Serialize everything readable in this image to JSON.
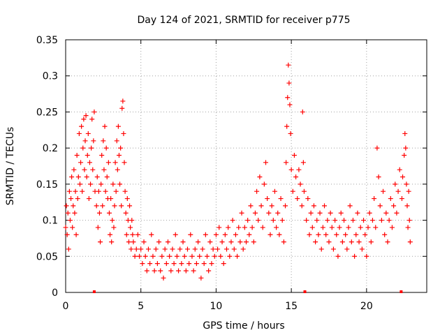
{
  "chart_data": {
    "type": "scatter",
    "title": "Day 124 of 2021, SRMTID for receiver p775",
    "xlabel": "GPS time / hours",
    "ylabel": "SRMTID / TECUs",
    "xlim": [
      0,
      24
    ],
    "ylim": [
      0,
      0.35
    ],
    "x_ticks": [
      0,
      5,
      10,
      15,
      20
    ],
    "x_tick_labels": [
      "0",
      "5",
      "10",
      "15",
      "20"
    ],
    "y_ticks": [
      0,
      0.05,
      0.1,
      0.15,
      0.2,
      0.25,
      0.3,
      0.35
    ],
    "y_tick_labels": [
      "0",
      "0.05",
      "0.1",
      "0.15",
      "0.2",
      "0.25",
      "0.3",
      "0.35"
    ],
    "grid": true,
    "marker": "plus",
    "series_color": "#ff0000",
    "gap_markers_x": [
      1.9,
      15.9,
      22.3
    ],
    "series": [
      {
        "name": "SRMTID",
        "points": [
          [
            0.0,
            0.09
          ],
          [
            0.05,
            0.12
          ],
          [
            0.1,
            0.08
          ],
          [
            0.15,
            0.11
          ],
          [
            0.2,
            0.06
          ],
          [
            0.25,
            0.14
          ],
          [
            0.3,
            0.1
          ],
          [
            0.35,
            0.13
          ],
          [
            0.4,
            0.16
          ],
          [
            0.45,
            0.09
          ],
          [
            0.5,
            0.12
          ],
          [
            0.55,
            0.17
          ],
          [
            0.6,
            0.11
          ],
          [
            0.65,
            0.14
          ],
          [
            0.7,
            0.08
          ],
          [
            0.75,
            0.19
          ],
          [
            0.8,
            0.13
          ],
          [
            0.85,
            0.16
          ],
          [
            0.9,
            0.22
          ],
          [
            0.95,
            0.15
          ],
          [
            1.0,
            0.18
          ],
          [
            1.05,
            0.23
          ],
          [
            1.1,
            0.14
          ],
          [
            1.15,
            0.2
          ],
          [
            1.2,
            0.24
          ],
          [
            1.25,
            0.17
          ],
          [
            1.3,
            0.21
          ],
          [
            1.35,
            0.245
          ],
          [
            1.4,
            0.16
          ],
          [
            1.45,
            0.19
          ],
          [
            1.5,
            0.22
          ],
          [
            1.55,
            0.13
          ],
          [
            1.6,
            0.18
          ],
          [
            1.65,
            0.15
          ],
          [
            1.7,
            0.2
          ],
          [
            1.75,
            0.24
          ],
          [
            1.8,
            0.17
          ],
          [
            1.85,
            0.21
          ],
          [
            1.9,
            0.25
          ],
          [
            1.95,
            0.14
          ],
          [
            2.05,
            0.12
          ],
          [
            2.1,
            0.16
          ],
          [
            2.15,
            0.09
          ],
          [
            2.2,
            0.14
          ],
          [
            2.25,
            0.11
          ],
          [
            2.3,
            0.07
          ],
          [
            2.35,
            0.15
          ],
          [
            2.4,
            0.19
          ],
          [
            2.45,
            0.12
          ],
          [
            2.5,
            0.21
          ],
          [
            2.55,
            0.17
          ],
          [
            2.6,
            0.23
          ],
          [
            2.65,
            0.14
          ],
          [
            2.7,
            0.2
          ],
          [
            2.75,
            0.16
          ],
          [
            2.8,
            0.13
          ],
          [
            2.85,
            0.18
          ],
          [
            2.9,
            0.11
          ],
          [
            2.95,
            0.08
          ],
          [
            3.0,
            0.13
          ],
          [
            3.05,
            0.07
          ],
          [
            3.1,
            0.1
          ],
          [
            3.15,
            0.15
          ],
          [
            3.2,
            0.09
          ],
          [
            3.25,
            0.12
          ],
          [
            3.3,
            0.18
          ],
          [
            3.35,
            0.14
          ],
          [
            3.4,
            0.21
          ],
          [
            3.45,
            0.17
          ],
          [
            3.5,
            0.23
          ],
          [
            3.55,
            0.19
          ],
          [
            3.6,
            0.15
          ],
          [
            3.65,
            0.2
          ],
          [
            3.7,
            0.12
          ],
          [
            3.75,
            0.255
          ],
          [
            3.8,
            0.265
          ],
          [
            3.85,
            0.22
          ],
          [
            3.9,
            0.18
          ],
          [
            3.95,
            0.14
          ],
          [
            4.0,
            0.11
          ],
          [
            4.05,
            0.08
          ],
          [
            4.1,
            0.13
          ],
          [
            4.15,
            0.1
          ],
          [
            4.2,
            0.07
          ],
          [
            4.25,
            0.12
          ],
          [
            4.3,
            0.09
          ],
          [
            4.35,
            0.06
          ],
          [
            4.4,
            0.1
          ],
          [
            4.45,
            0.08
          ],
          [
            4.5,
            0.07
          ],
          [
            4.6,
            0.05
          ],
          [
            4.7,
            0.06
          ],
          [
            4.8,
            0.08
          ],
          [
            4.9,
            0.05
          ],
          [
            5.0,
            0.06
          ],
          [
            5.1,
            0.04
          ],
          [
            5.2,
            0.07
          ],
          [
            5.3,
            0.05
          ],
          [
            5.4,
            0.03
          ],
          [
            5.5,
            0.06
          ],
          [
            5.6,
            0.04
          ],
          [
            5.7,
            0.08
          ],
          [
            5.8,
            0.05
          ],
          [
            5.9,
            0.03
          ],
          [
            6.0,
            0.06
          ],
          [
            6.1,
            0.04
          ],
          [
            6.2,
            0.07
          ],
          [
            6.3,
            0.03
          ],
          [
            6.4,
            0.05
          ],
          [
            6.5,
            0.02
          ],
          [
            6.6,
            0.06
          ],
          [
            6.7,
            0.04
          ],
          [
            6.8,
            0.07
          ],
          [
            6.9,
            0.05
          ],
          [
            7.0,
            0.03
          ],
          [
            7.1,
            0.06
          ],
          [
            7.2,
            0.04
          ],
          [
            7.3,
            0.08
          ],
          [
            7.4,
            0.05
          ],
          [
            7.5,
            0.03
          ],
          [
            7.6,
            0.06
          ],
          [
            7.7,
            0.04
          ],
          [
            7.8,
            0.07
          ],
          [
            7.9,
            0.05
          ],
          [
            8.0,
            0.03
          ],
          [
            8.1,
            0.06
          ],
          [
            8.2,
            0.04
          ],
          [
            8.3,
            0.08
          ],
          [
            8.4,
            0.05
          ],
          [
            8.5,
            0.03
          ],
          [
            8.6,
            0.06
          ],
          [
            8.7,
            0.04
          ],
          [
            8.8,
            0.07
          ],
          [
            8.9,
            0.05
          ],
          [
            9.0,
            0.02
          ],
          [
            9.1,
            0.06
          ],
          [
            9.2,
            0.04
          ],
          [
            9.3,
            0.08
          ],
          [
            9.4,
            0.05
          ],
          [
            9.5,
            0.03
          ],
          [
            9.6,
            0.07
          ],
          [
            9.7,
            0.04
          ],
          [
            9.8,
            0.06
          ],
          [
            9.9,
            0.05
          ],
          [
            10.0,
            0.08
          ],
          [
            10.1,
            0.06
          ],
          [
            10.2,
            0.09
          ],
          [
            10.3,
            0.05
          ],
          [
            10.4,
            0.07
          ],
          [
            10.5,
            0.04
          ],
          [
            10.6,
            0.08
          ],
          [
            10.7,
            0.06
          ],
          [
            10.8,
            0.09
          ],
          [
            10.9,
            0.05
          ],
          [
            11.0,
            0.07
          ],
          [
            11.1,
            0.1
          ],
          [
            11.2,
            0.06
          ],
          [
            11.3,
            0.08
          ],
          [
            11.4,
            0.05
          ],
          [
            11.5,
            0.09
          ],
          [
            11.6,
            0.07
          ],
          [
            11.7,
            0.11
          ],
          [
            11.8,
            0.06
          ],
          [
            11.9,
            0.09
          ],
          [
            12.0,
            0.07
          ],
          [
            12.1,
            0.1
          ],
          [
            12.2,
            0.08
          ],
          [
            12.3,
            0.12
          ],
          [
            12.4,
            0.09
          ],
          [
            12.5,
            0.07
          ],
          [
            12.6,
            0.11
          ],
          [
            12.7,
            0.14
          ],
          [
            12.8,
            0.1
          ],
          [
            12.9,
            0.16
          ],
          [
            13.0,
            0.12
          ],
          [
            13.1,
            0.09
          ],
          [
            13.2,
            0.15
          ],
          [
            13.3,
            0.18
          ],
          [
            13.4,
            0.13
          ],
          [
            13.5,
            0.11
          ],
          [
            13.6,
            0.08
          ],
          [
            13.7,
            0.12
          ],
          [
            13.8,
            0.1
          ],
          [
            13.9,
            0.14
          ],
          [
            14.0,
            0.09
          ],
          [
            14.1,
            0.11
          ],
          [
            14.2,
            0.08
          ],
          [
            14.3,
            0.13
          ],
          [
            14.4,
            0.1
          ],
          [
            14.5,
            0.07
          ],
          [
            14.6,
            0.12
          ],
          [
            14.65,
            0.18
          ],
          [
            14.7,
            0.23
          ],
          [
            14.75,
            0.27
          ],
          [
            14.8,
            0.315
          ],
          [
            14.85,
            0.29
          ],
          [
            14.9,
            0.26
          ],
          [
            14.95,
            0.22
          ],
          [
            15.0,
            0.17
          ],
          [
            15.1,
            0.14
          ],
          [
            15.2,
            0.19
          ],
          [
            15.3,
            0.16
          ],
          [
            15.4,
            0.13
          ],
          [
            15.5,
            0.17
          ],
          [
            15.6,
            0.15
          ],
          [
            15.7,
            0.12
          ],
          [
            15.75,
            0.25
          ],
          [
            15.8,
            0.18
          ],
          [
            15.85,
            0.14
          ],
          [
            16.0,
            0.1
          ],
          [
            16.1,
            0.13
          ],
          [
            16.2,
            0.08
          ],
          [
            16.3,
            0.11
          ],
          [
            16.4,
            0.09
          ],
          [
            16.5,
            0.12
          ],
          [
            16.6,
            0.07
          ],
          [
            16.7,
            0.1
          ],
          [
            16.8,
            0.08
          ],
          [
            16.9,
            0.11
          ],
          [
            17.0,
            0.06
          ],
          [
            17.1,
            0.09
          ],
          [
            17.2,
            0.12
          ],
          [
            17.3,
            0.08
          ],
          [
            17.4,
            0.1
          ],
          [
            17.5,
            0.07
          ],
          [
            17.6,
            0.11
          ],
          [
            17.7,
            0.09
          ],
          [
            17.8,
            0.06
          ],
          [
            17.9,
            0.1
          ],
          [
            18.0,
            0.08
          ],
          [
            18.1,
            0.05
          ],
          [
            18.2,
            0.09
          ],
          [
            18.3,
            0.11
          ],
          [
            18.4,
            0.07
          ],
          [
            18.5,
            0.1
          ],
          [
            18.6,
            0.08
          ],
          [
            18.7,
            0.06
          ],
          [
            18.8,
            0.09
          ],
          [
            18.9,
            0.12
          ],
          [
            19.0,
            0.07
          ],
          [
            19.1,
            0.1
          ],
          [
            19.2,
            0.05
          ],
          [
            19.3,
            0.08
          ],
          [
            19.4,
            0.11
          ],
          [
            19.5,
            0.07
          ],
          [
            19.6,
            0.09
          ],
          [
            19.7,
            0.06
          ],
          [
            19.8,
            0.1
          ],
          [
            19.9,
            0.08
          ],
          [
            20.0,
            0.05
          ],
          [
            20.1,
            0.09
          ],
          [
            20.2,
            0.11
          ],
          [
            20.3,
            0.07
          ],
          [
            20.4,
            0.1
          ],
          [
            20.5,
            0.13
          ],
          [
            20.6,
            0.09
          ],
          [
            20.7,
            0.2
          ],
          [
            20.8,
            0.16
          ],
          [
            20.9,
            0.12
          ],
          [
            21.0,
            0.1
          ],
          [
            21.1,
            0.14
          ],
          [
            21.2,
            0.08
          ],
          [
            21.3,
            0.11
          ],
          [
            21.4,
            0.07
          ],
          [
            21.5,
            0.1
          ],
          [
            21.6,
            0.13
          ],
          [
            21.7,
            0.09
          ],
          [
            21.8,
            0.12
          ],
          [
            21.9,
            0.15
          ],
          [
            22.0,
            0.11
          ],
          [
            22.1,
            0.14
          ],
          [
            22.2,
            0.17
          ],
          [
            22.35,
            0.13
          ],
          [
            22.4,
            0.16
          ],
          [
            22.5,
            0.19
          ],
          [
            22.55,
            0.22
          ],
          [
            22.6,
            0.2
          ],
          [
            22.65,
            0.15
          ],
          [
            22.7,
            0.12
          ],
          [
            22.75,
            0.09
          ],
          [
            22.8,
            0.14
          ],
          [
            22.85,
            0.1
          ],
          [
            22.9,
            0.07
          ]
        ]
      }
    ]
  }
}
